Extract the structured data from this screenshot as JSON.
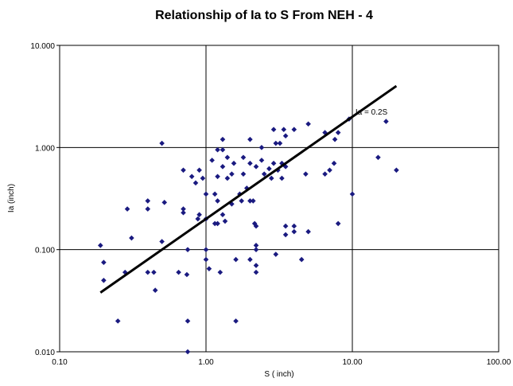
{
  "chart_data": {
    "type": "scatter",
    "title": "Relationship of Ia to S From NEH - 4",
    "xlabel": "S ( inch)",
    "ylabel": "Ia (inch)",
    "x_scale": "log",
    "y_scale": "log",
    "xlim": [
      0.1,
      100
    ],
    "ylim": [
      0.01,
      10
    ],
    "x_ticks": [
      "0.10",
      "1.00",
      "10.00",
      "100.00"
    ],
    "y_ticks": [
      "0.010",
      "0.100",
      "1.000",
      "10.000"
    ],
    "grid": true,
    "colors": {
      "points": "#1a1a80",
      "line": "#000000"
    },
    "series": [
      {
        "points": [
          [
            0.19,
            0.11
          ],
          [
            0.2,
            0.075
          ],
          [
            0.2,
            0.05
          ],
          [
            0.25,
            0.02
          ],
          [
            0.28,
            0.06
          ],
          [
            0.29,
            0.25
          ],
          [
            0.31,
            0.13
          ],
          [
            0.4,
            0.3
          ],
          [
            0.4,
            0.25
          ],
          [
            0.4,
            0.06
          ],
          [
            0.44,
            0.06
          ],
          [
            0.45,
            0.04
          ],
          [
            0.5,
            1.1
          ],
          [
            0.5,
            0.12
          ],
          [
            0.52,
            0.29
          ],
          [
            0.65,
            0.06
          ],
          [
            0.7,
            0.6
          ],
          [
            0.7,
            0.25
          ],
          [
            0.7,
            0.23
          ],
          [
            0.74,
            0.057
          ],
          [
            0.75,
            0.1
          ],
          [
            0.75,
            0.02
          ],
          [
            0.75,
            0.01
          ],
          [
            0.8,
            0.52
          ],
          [
            0.85,
            0.45
          ],
          [
            0.88,
            0.2
          ],
          [
            0.9,
            0.6
          ],
          [
            0.9,
            0.22
          ],
          [
            0.95,
            0.5
          ],
          [
            1.0,
            0.35
          ],
          [
            1.0,
            0.2
          ],
          [
            1.0,
            0.1
          ],
          [
            1.0,
            0.08
          ],
          [
            1.05,
            0.065
          ],
          [
            1.1,
            0.75
          ],
          [
            1.15,
            0.35
          ],
          [
            1.15,
            0.18
          ],
          [
            1.2,
            0.95
          ],
          [
            1.2,
            0.52
          ],
          [
            1.2,
            0.3
          ],
          [
            1.2,
            0.18
          ],
          [
            1.25,
            0.06
          ],
          [
            1.3,
            1.2
          ],
          [
            1.3,
            0.95
          ],
          [
            1.3,
            0.65
          ],
          [
            1.3,
            0.22
          ],
          [
            1.35,
            0.19
          ],
          [
            1.4,
            0.8
          ],
          [
            1.4,
            0.5
          ],
          [
            1.5,
            0.55
          ],
          [
            1.5,
            0.28
          ],
          [
            1.55,
            0.7
          ],
          [
            1.6,
            0.02
          ],
          [
            1.6,
            0.08
          ],
          [
            1.7,
            0.35
          ],
          [
            1.75,
            0.3
          ],
          [
            1.8,
            0.8
          ],
          [
            1.8,
            0.55
          ],
          [
            1.9,
            0.4
          ],
          [
            2.0,
            1.2
          ],
          [
            2.0,
            0.7
          ],
          [
            2.0,
            0.3
          ],
          [
            2.0,
            0.08
          ],
          [
            2.1,
            0.3
          ],
          [
            2.15,
            0.18
          ],
          [
            2.2,
            0.65
          ],
          [
            2.2,
            0.17
          ],
          [
            2.2,
            0.11
          ],
          [
            2.2,
            0.1
          ],
          [
            2.2,
            0.07
          ],
          [
            2.2,
            0.06
          ],
          [
            2.4,
            1.0
          ],
          [
            2.4,
            0.75
          ],
          [
            2.5,
            0.55
          ],
          [
            2.7,
            0.62
          ],
          [
            2.8,
            0.5
          ],
          [
            2.9,
            0.7
          ],
          [
            2.9,
            1.5
          ],
          [
            3.0,
            1.1
          ],
          [
            3.0,
            0.09
          ],
          [
            3.1,
            0.6
          ],
          [
            3.2,
            1.1
          ],
          [
            3.3,
            0.7
          ],
          [
            3.3,
            0.5
          ],
          [
            3.4,
            1.5
          ],
          [
            3.5,
            1.3
          ],
          [
            3.5,
            0.65
          ],
          [
            3.5,
            0.17
          ],
          [
            3.5,
            0.14
          ],
          [
            4.0,
            1.5
          ],
          [
            4.0,
            0.17
          ],
          [
            4.0,
            0.15
          ],
          [
            4.5,
            0.08
          ],
          [
            4.8,
            0.55
          ],
          [
            5.0,
            1.7
          ],
          [
            5.0,
            0.15
          ],
          [
            6.5,
            1.4
          ],
          [
            6.5,
            0.55
          ],
          [
            7.0,
            0.6
          ],
          [
            7.5,
            0.7
          ],
          [
            7.6,
            1.2
          ],
          [
            8.0,
            1.4
          ],
          [
            8.0,
            0.18
          ],
          [
            9.5,
            1.9
          ],
          [
            10.0,
            0.35
          ],
          [
            15.0,
            0.8
          ],
          [
            17.0,
            1.8
          ],
          [
            20.0,
            0.6
          ]
        ]
      },
      {
        "type": "line",
        "points": [
          [
            0.19,
            0.038
          ],
          [
            20.0,
            4.0
          ]
        ]
      }
    ],
    "annotations": [
      {
        "text": "Ia = 0.2S",
        "x": 10.5,
        "y": 2.1
      }
    ]
  }
}
